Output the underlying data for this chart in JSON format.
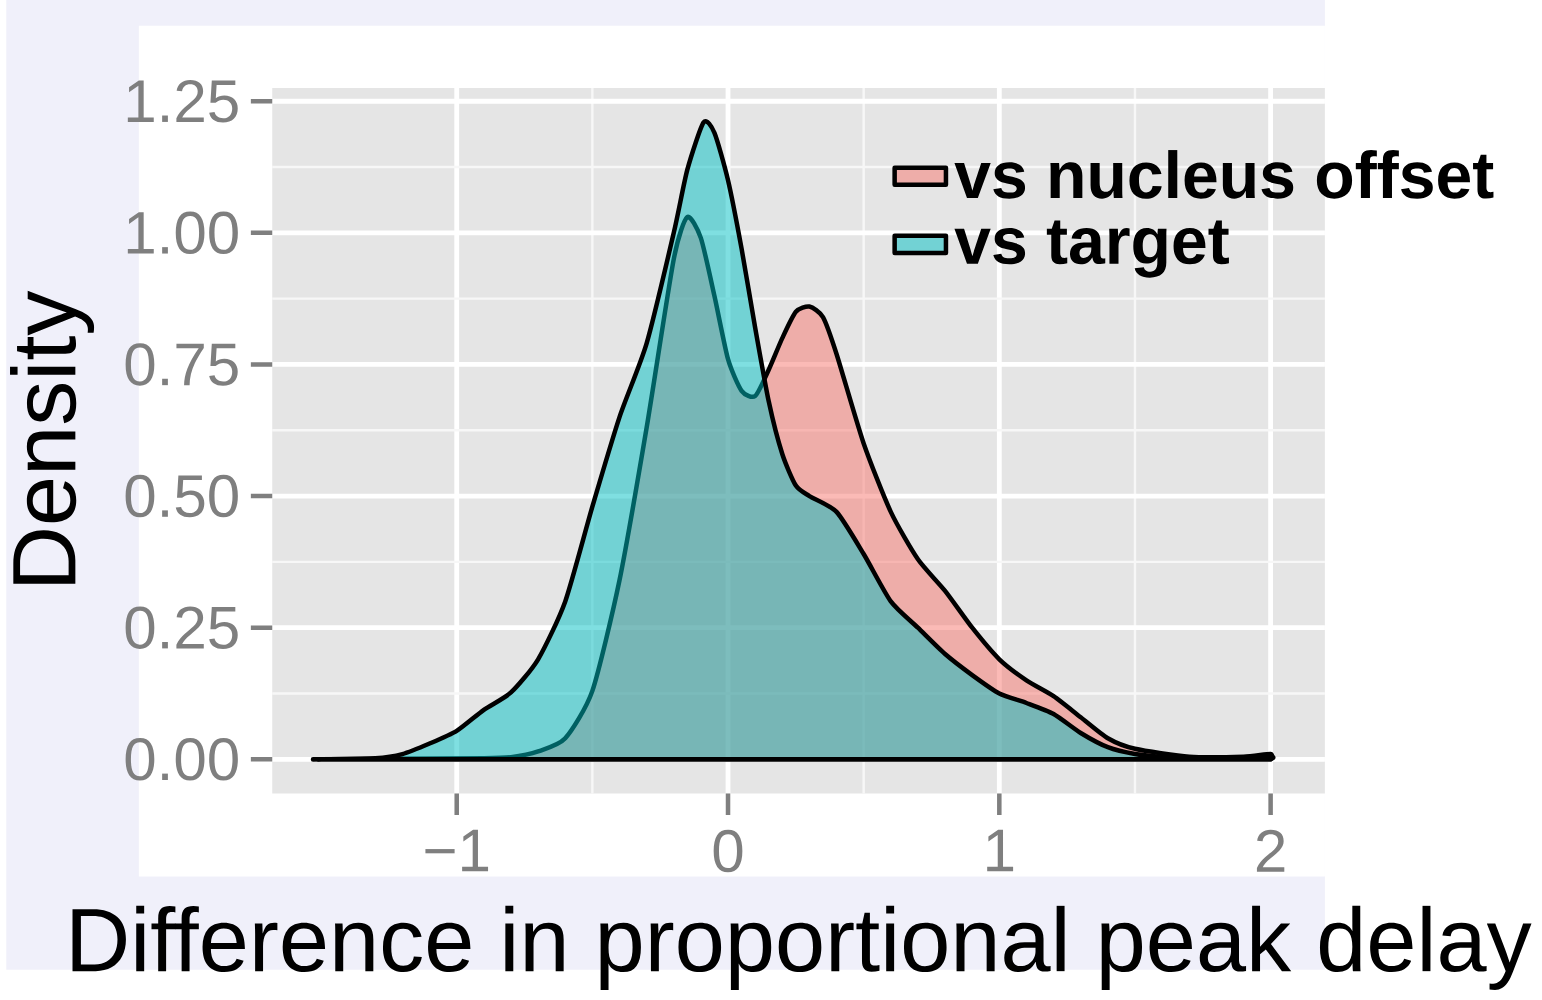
{
  "chart_data": {
    "type": "area",
    "xlabel": "Difference in proportional peak delay",
    "ylabel": "Density",
    "xlim": [
      -1.68,
      2.2
    ],
    "ylim": [
      -0.065,
      1.275
    ],
    "xticks": [
      {
        "value": -1,
        "label": "−1"
      },
      0,
      1,
      2
    ],
    "yticks": [
      {
        "value": 0,
        "label": "0.00"
      },
      {
        "value": 0.25,
        "label": "0.25"
      },
      {
        "value": 0.5,
        "label": "0.50"
      },
      {
        "value": 0.75,
        "label": "0.75"
      },
      {
        "value": 1,
        "label": "1.00"
      },
      {
        "value": 1.25,
        "label": "1.25"
      }
    ],
    "grid": true,
    "legend": "top right",
    "series": [
      {
        "name": "vs nucleus offset",
        "color": "#f8766d",
        "x": [
          -1.5,
          -0.9,
          -0.8,
          -0.7,
          -0.6,
          -0.5,
          -0.4,
          -0.3,
          -0.2,
          -0.15,
          -0.1,
          -0.05,
          0,
          0.05,
          0.1,
          0.15,
          0.2,
          0.25,
          0.3,
          0.35,
          0.4,
          0.5,
          0.6,
          0.7,
          0.8,
          0.9,
          1.0,
          1.1,
          1.2,
          1.3,
          1.4,
          1.5,
          1.7,
          1.9,
          2.0
        ],
        "values": [
          0,
          0.002,
          0.004,
          0.015,
          0.04,
          0.13,
          0.34,
          0.63,
          0.95,
          1.03,
          0.99,
          0.88,
          0.76,
          0.7,
          0.69,
          0.74,
          0.8,
          0.85,
          0.86,
          0.84,
          0.77,
          0.6,
          0.47,
          0.38,
          0.32,
          0.25,
          0.19,
          0.15,
          0.12,
          0.08,
          0.04,
          0.02,
          0.005,
          0.005,
          0.01
        ]
      },
      {
        "name": "vs target",
        "color": "#00bfc4",
        "x": [
          -1.5,
          -1.3,
          -1.2,
          -1.1,
          -1.0,
          -0.9,
          -0.8,
          -0.7,
          -0.6,
          -0.5,
          -0.4,
          -0.3,
          -0.2,
          -0.15,
          -0.09,
          -0.05,
          0,
          0.05,
          0.1,
          0.15,
          0.2,
          0.25,
          0.3,
          0.4,
          0.5,
          0.6,
          0.7,
          0.8,
          0.9,
          1.0,
          1.1,
          1.2,
          1.3,
          1.4,
          1.5,
          1.6,
          1.8,
          2.0
        ],
        "values": [
          0,
          0.002,
          0.01,
          0.03,
          0.054,
          0.094,
          0.127,
          0.19,
          0.3,
          0.48,
          0.65,
          0.79,
          1.0,
          1.12,
          1.21,
          1.19,
          1.1,
          0.97,
          0.82,
          0.68,
          0.58,
          0.52,
          0.5,
          0.47,
          0.39,
          0.3,
          0.25,
          0.2,
          0.16,
          0.125,
          0.107,
          0.086,
          0.05,
          0.023,
          0.01,
          0.005,
          0.003,
          0.005
        ]
      }
    ]
  }
}
